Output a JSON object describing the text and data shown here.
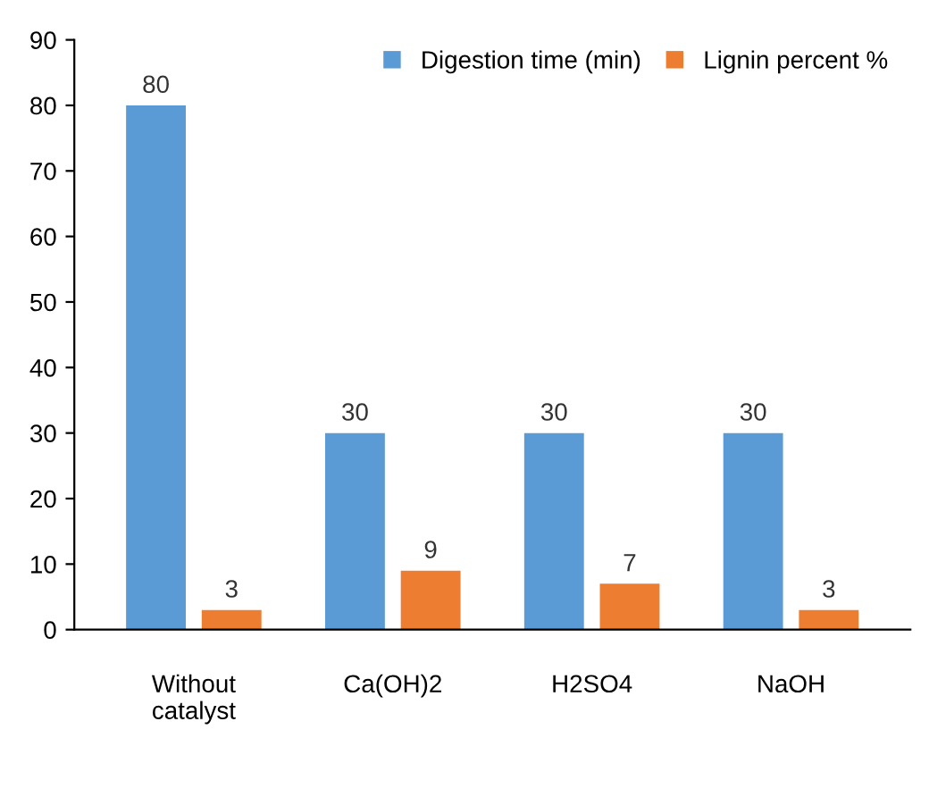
{
  "chart_data": {
    "type": "bar",
    "categories": [
      "Without\ncatalyst",
      "Ca(OH)2",
      "H2SO4",
      "NaOH"
    ],
    "series": [
      {
        "name": "Digestion time (min)",
        "color": "#5b9bd5",
        "values": [
          80,
          30,
          30,
          30
        ]
      },
      {
        "name": "Lignin percent %",
        "color": "#ed7d31",
        "values": [
          3,
          9,
          7,
          3
        ]
      }
    ],
    "ylim": [
      0,
      90
    ],
    "yticks": [
      0,
      10,
      20,
      30,
      40,
      50,
      60,
      70,
      80,
      90
    ],
    "data_labels": true,
    "legend": "top right",
    "grid": false
  }
}
